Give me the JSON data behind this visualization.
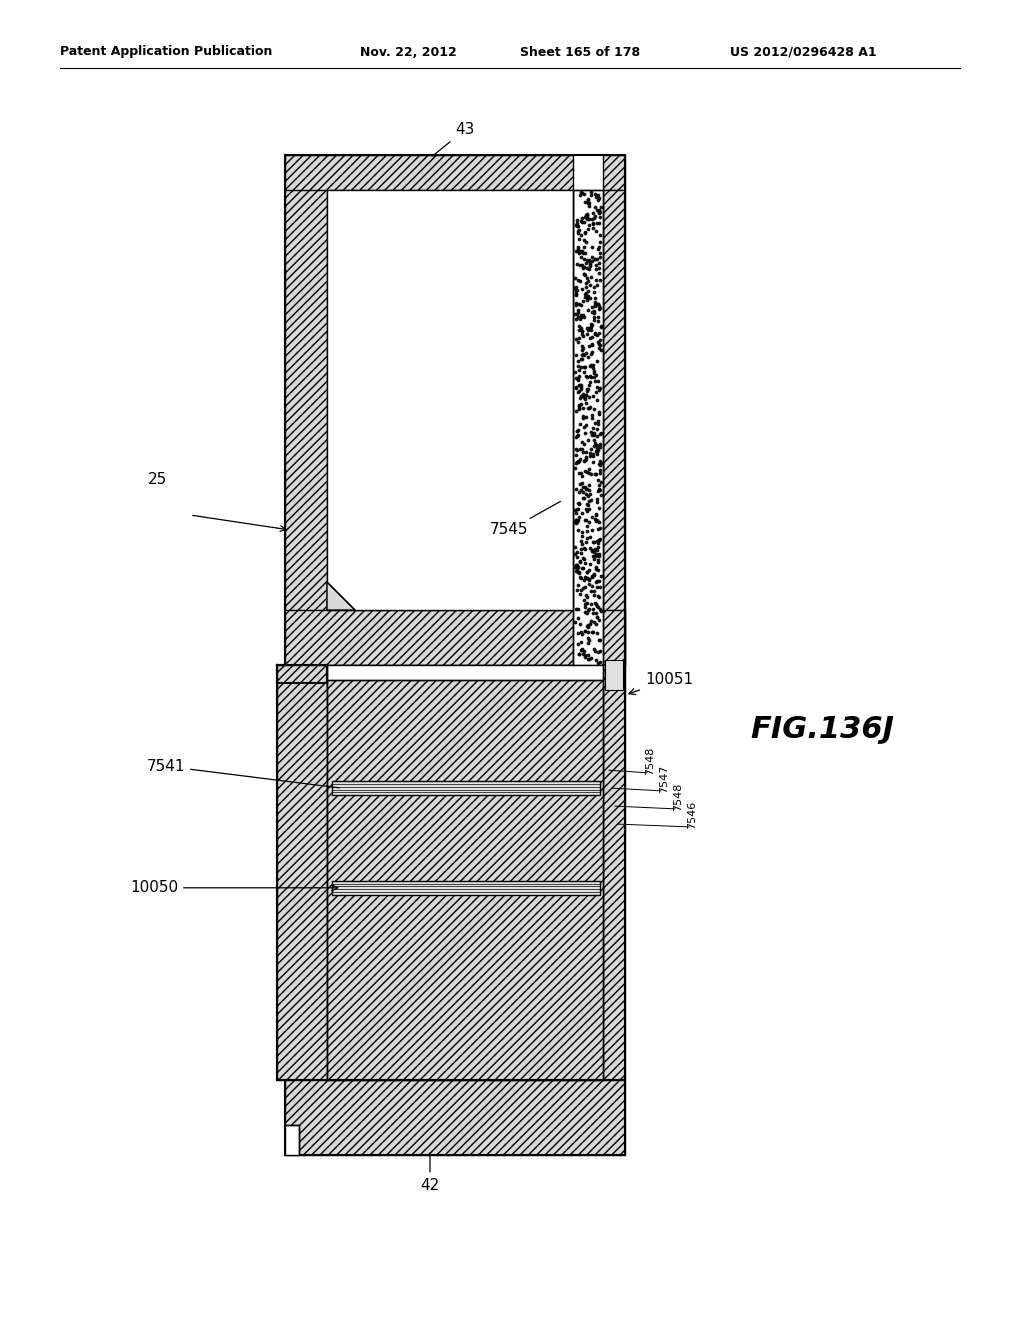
{
  "bg_color": "#ffffff",
  "header_text": "Patent Application Publication",
  "header_date": "Nov. 22, 2012",
  "header_sheet": "Sheet 165 of 178",
  "header_patent": "US 2012/0296428 A1",
  "fig_label": "FIG.136J",
  "hatch_color": "#c8c8c8",
  "outer_lw": 1.5,
  "inner_lw": 1.0
}
